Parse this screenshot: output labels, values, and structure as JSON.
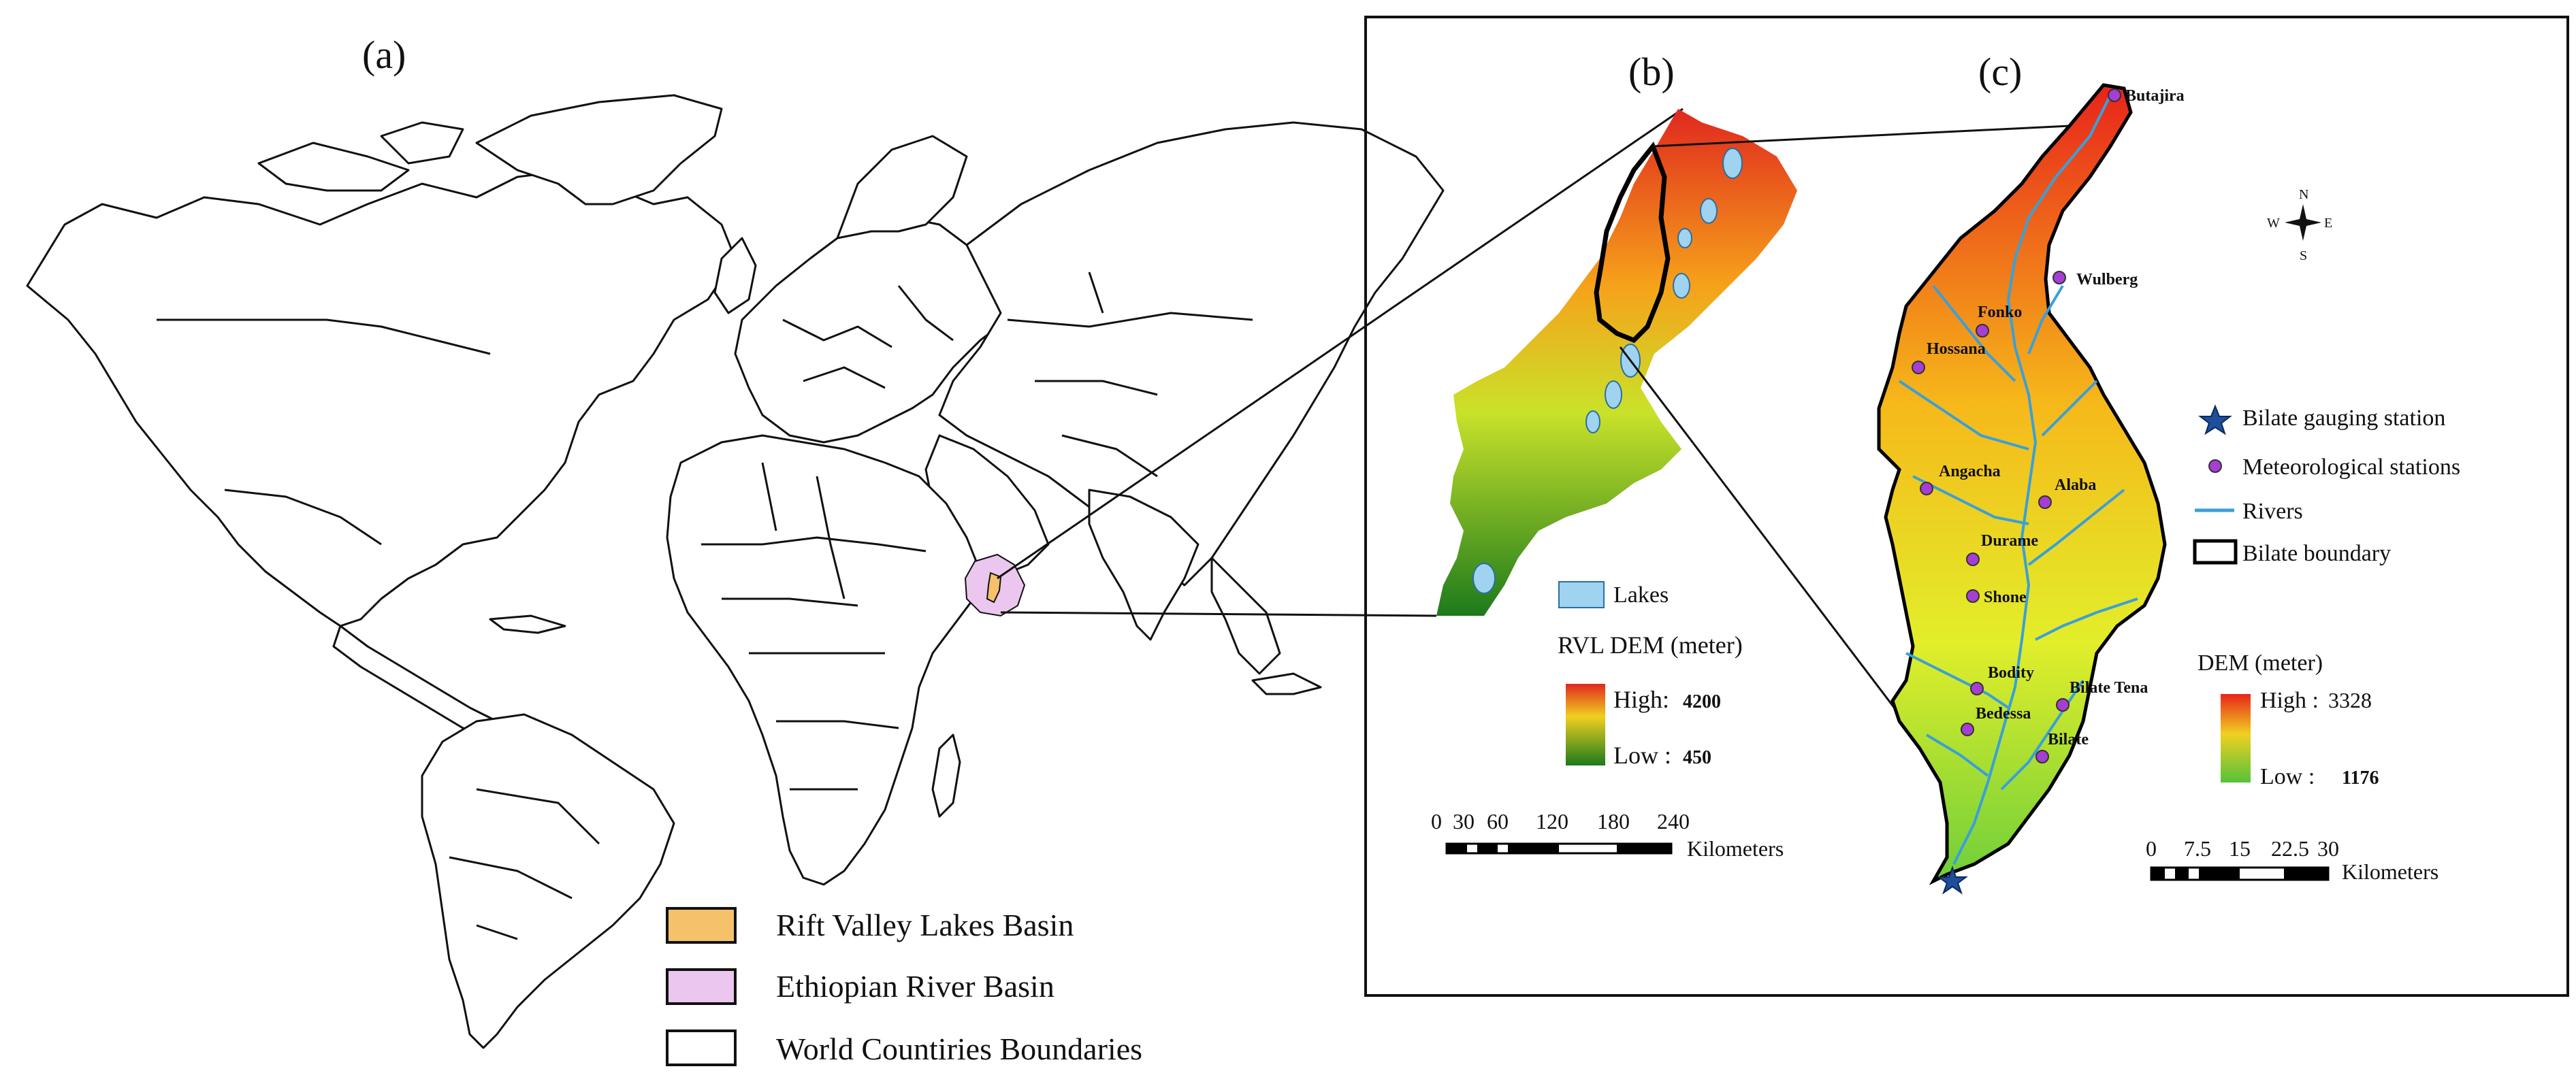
{
  "panels": {
    "a_label": "(a)",
    "b_label": "(b)",
    "c_label": "(c)"
  },
  "world_legend": {
    "items": [
      {
        "label": "Rift Valley Lakes Basin",
        "color": "#f5c26b"
      },
      {
        "label": "Ethiopian River Basin",
        "color": "#ebc6ee"
      },
      {
        "label": "World Countiries Boundaries",
        "color": "#ffffff"
      }
    ]
  },
  "panel_b": {
    "lakes_label": "Lakes",
    "lakes_color": "#9fd3f0",
    "dem_title": "RVL DEM (meter)",
    "high_label": "High:",
    "high_value": "4200",
    "low_label": "Low :",
    "low_value": "450",
    "scale_ticks": [
      "0",
      "30",
      "60",
      "120",
      "180",
      "240"
    ],
    "scale_unit": "Kilometers"
  },
  "panel_c": {
    "legend": [
      {
        "label": "Bilate gauging station",
        "symbol": "star-icon",
        "color": "#1f4e9c"
      },
      {
        "label": "Meteorological stations",
        "symbol": "circle-icon",
        "color": "#a63ed3"
      },
      {
        "label": "Rivers",
        "symbol": "line-icon",
        "color": "#3aa0d8"
      },
      {
        "label": "Bilate boundary",
        "symbol": "box-icon",
        "color": "#000000"
      }
    ],
    "dem_title": "DEM (meter)",
    "high_label": "High :",
    "high_value": "3328",
    "low_label": "Low :",
    "low_value": "1176",
    "scale_ticks": [
      "0",
      "7.5",
      "15",
      "22.5",
      "30"
    ],
    "scale_unit": "Kilometers",
    "compass": {
      "n": "N",
      "s": "S",
      "e": "E",
      "w": "W"
    },
    "stations": [
      "Butajira",
      "Wulberg",
      "Fonko",
      "Hossana",
      "Angacha",
      "Alaba",
      "Durame",
      "Shone",
      "Bodity",
      "Bilate Tena",
      "Bedessa",
      "Bilate"
    ]
  }
}
